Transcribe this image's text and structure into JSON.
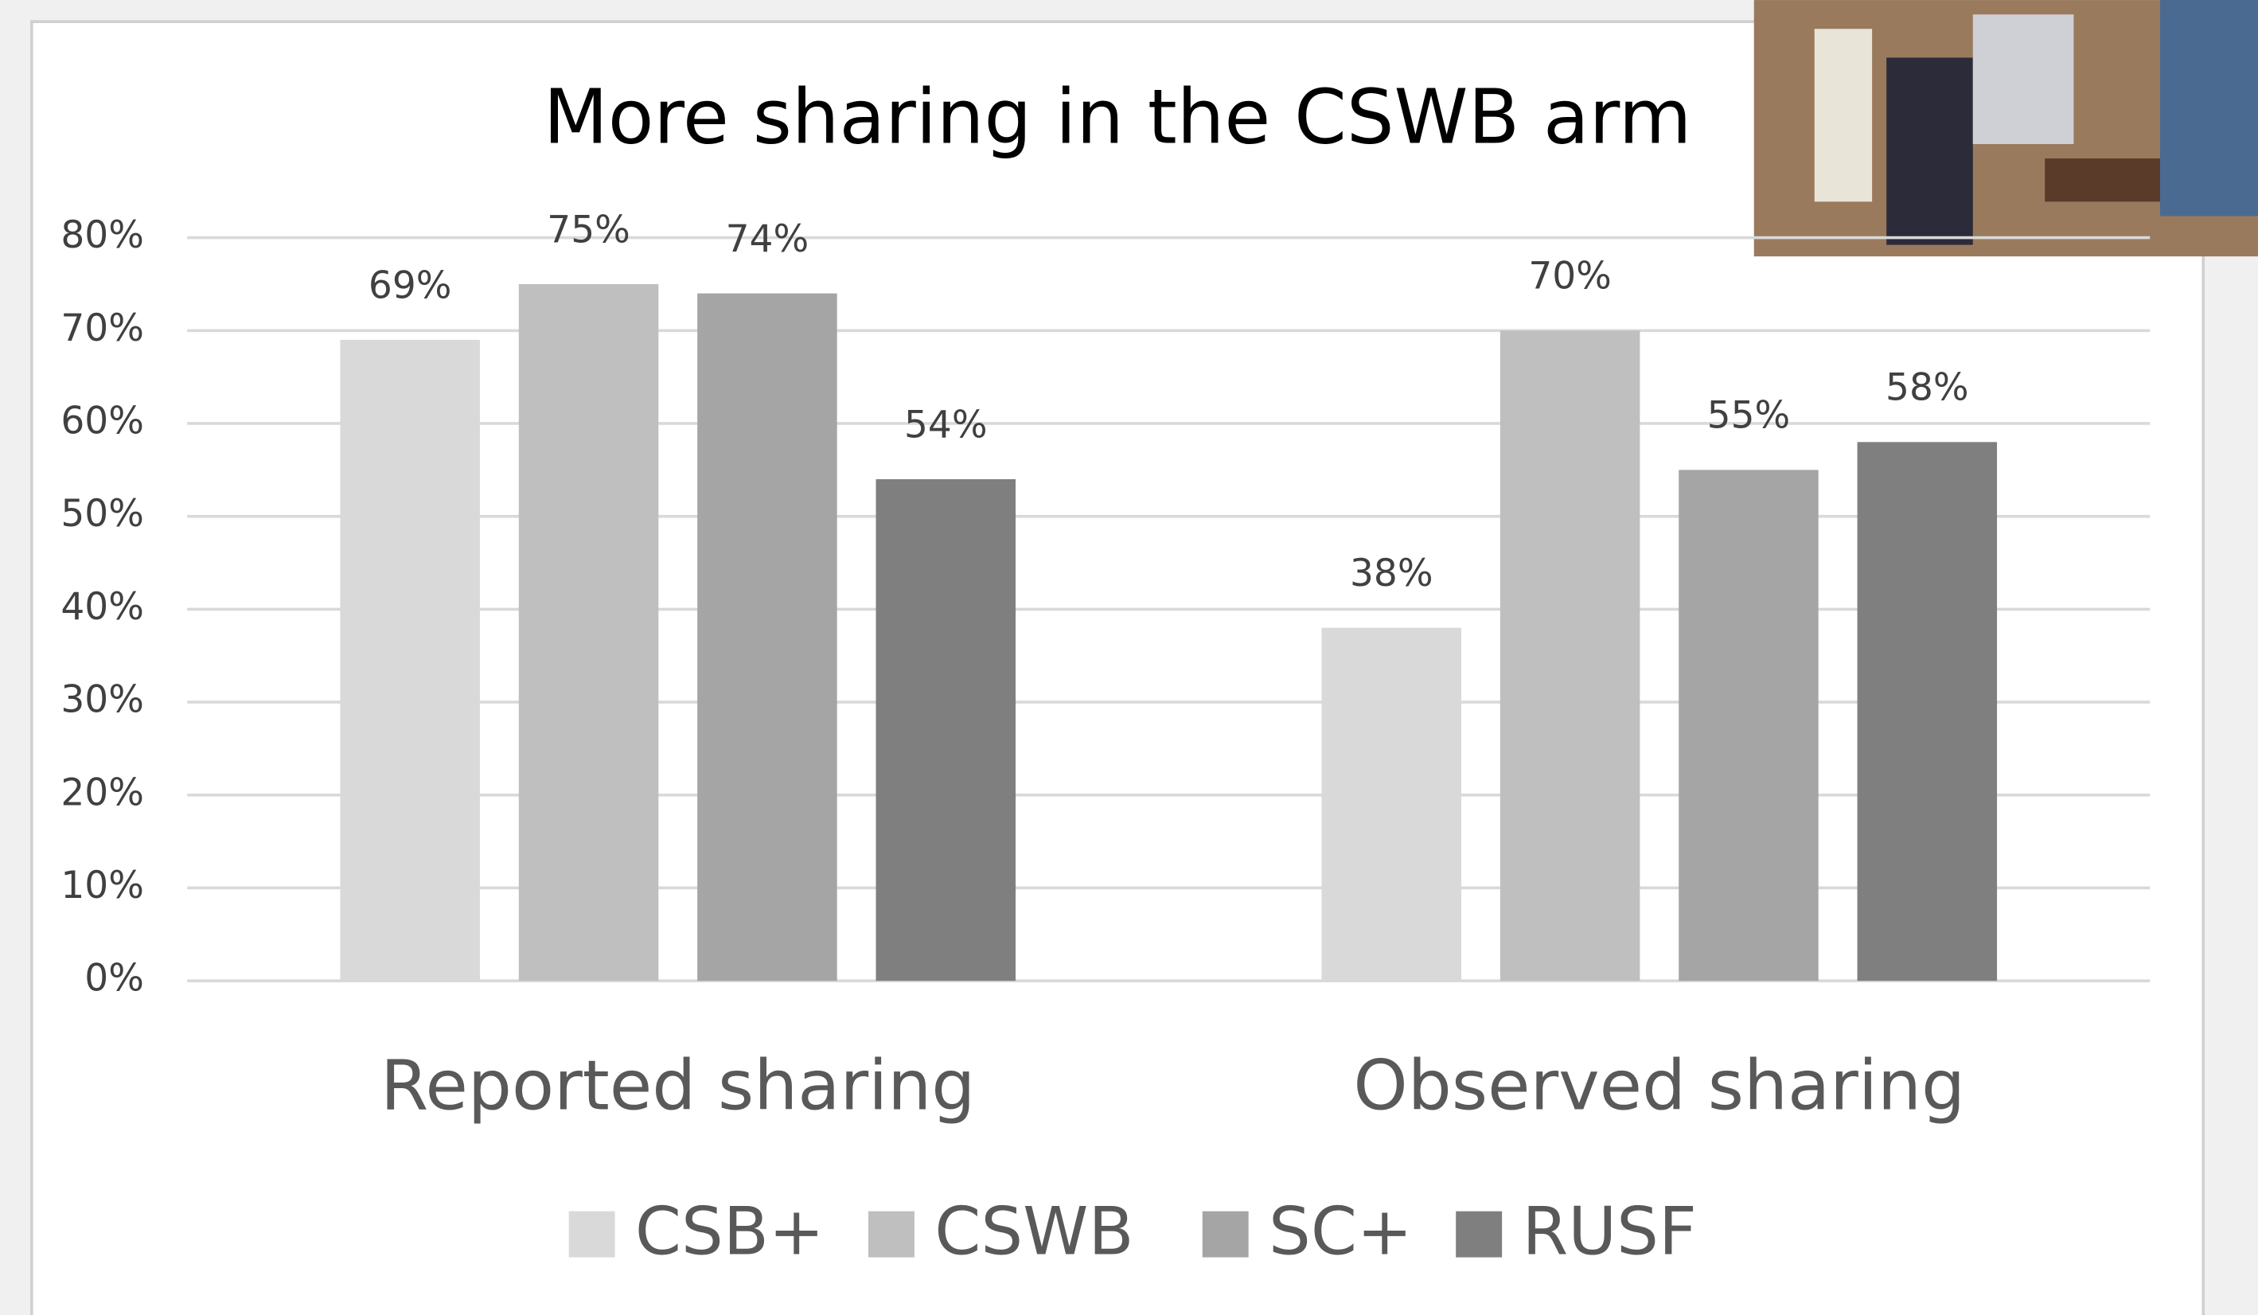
{
  "chart_data": {
    "type": "bar",
    "title": "More sharing in the CSWB arm",
    "categories": [
      "Reported sharing",
      "Observed sharing"
    ],
    "series": [
      {
        "name": "CSB+",
        "color": "#d9d9d9",
        "values": [
          69,
          38
        ],
        "value_labels": [
          "69%",
          "38%"
        ]
      },
      {
        "name": "CSWB",
        "color": "#bfbfbf",
        "values": [
          75,
          70
        ],
        "value_labels": [
          "75%",
          "70%"
        ]
      },
      {
        "name": "SC+",
        "color": "#a5a5a5",
        "values": [
          74,
          55
        ],
        "value_labels": [
          "74%",
          "55%"
        ]
      },
      {
        "name": "RUSF",
        "color": "#7f7f7f",
        "values": [
          54,
          58
        ],
        "value_labels": [
          "54%",
          "58%"
        ]
      }
    ],
    "ylim": [
      0,
      80
    ],
    "yticks": [
      {
        "value": 0,
        "label": "0%"
      },
      {
        "value": 10,
        "label": "10%"
      },
      {
        "value": 20,
        "label": "20%"
      },
      {
        "value": 30,
        "label": "30%"
      },
      {
        "value": 40,
        "label": "40%"
      },
      {
        "value": 50,
        "label": "50%"
      },
      {
        "value": 60,
        "label": "60%"
      },
      {
        "value": 70,
        "label": "70%"
      },
      {
        "value": 80,
        "label": "80%"
      }
    ],
    "grid": true,
    "legend": "bottom"
  }
}
